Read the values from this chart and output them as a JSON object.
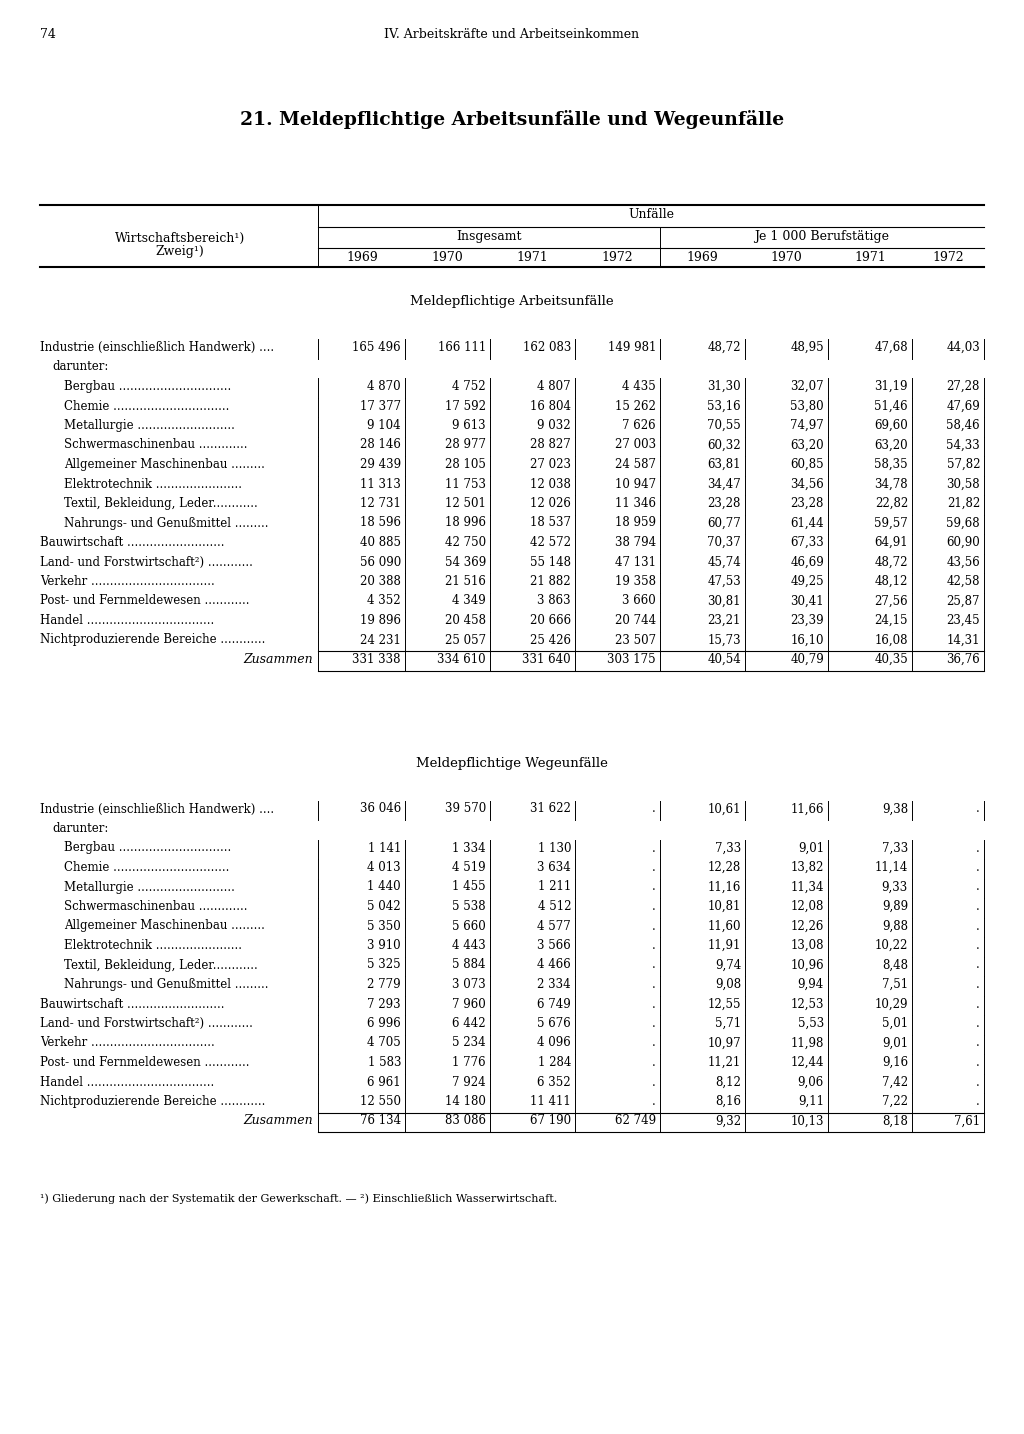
{
  "page_number": "74",
  "header": "IV. Arbeitskäfte und Arbeitseinkommen",
  "header_correct": "IV. Arbeitskräfte und Arbeitseinkommen",
  "title": "21. Meldepflichtige Arbeitsunfälle und Wegeunfälle",
  "col_header_wirtschaft1": "Wirtschaftsbereich¹)",
  "col_header_wirtschaft2": "Zweig¹)",
  "col_header_unfalle": "Unfälle",
  "col_header_insgesamt": "Insgesamt",
  "col_header_je1000": "Je 1 000 Berufstätige",
  "years": [
    "1969",
    "1970",
    "1971",
    "1972"
  ],
  "section1_title": "Meldepflichtige Arbeitsunfälle",
  "section1_rows": [
    {
      "label": "Industrie (einschließlich Handwerk) ....",
      "indent": 0,
      "bold": false,
      "zusammen": false,
      "darunt": false,
      "vals": [
        "165 496",
        "166 111",
        "162 083",
        "149 981",
        "48,72",
        "48,95",
        "47,68",
        "44,03"
      ]
    },
    {
      "label": "darunter:",
      "indent": 1,
      "bold": false,
      "zusammen": false,
      "darunt": true,
      "vals": [
        "",
        "",
        "",
        "",
        "",
        "",
        "",
        ""
      ]
    },
    {
      "label": "Bergbau ..............................",
      "indent": 2,
      "bold": false,
      "zusammen": false,
      "darunt": false,
      "vals": [
        "4 870",
        "4 752",
        "4 807",
        "4 435",
        "31,30",
        "32,07",
        "31,19",
        "27,28"
      ]
    },
    {
      "label": "Chemie ...............................",
      "indent": 2,
      "bold": false,
      "zusammen": false,
      "darunt": false,
      "vals": [
        "17 377",
        "17 592",
        "16 804",
        "15 262",
        "53,16",
        "53,80",
        "51,46",
        "47,69"
      ]
    },
    {
      "label": "Metallurgie ..........................",
      "indent": 2,
      "bold": false,
      "zusammen": false,
      "darunt": false,
      "vals": [
        "9 104",
        "9 613",
        "9 032",
        "7 626",
        "70,55",
        "74,97",
        "69,60",
        "58,46"
      ]
    },
    {
      "label": "Schwermaschinenbau .............",
      "indent": 2,
      "bold": false,
      "zusammen": false,
      "darunt": false,
      "vals": [
        "28 146",
        "28 977",
        "28 827",
        "27 003",
        "60,32",
        "63,20",
        "63,20",
        "54,33"
      ]
    },
    {
      "label": "Allgemeiner Maschinenbau .........",
      "indent": 2,
      "bold": false,
      "zusammen": false,
      "darunt": false,
      "vals": [
        "29 439",
        "28 105",
        "27 023",
        "24 587",
        "63,81",
        "60,85",
        "58,35",
        "57,82"
      ]
    },
    {
      "label": "Elektrotechnik .......................",
      "indent": 2,
      "bold": false,
      "zusammen": false,
      "darunt": false,
      "vals": [
        "11 313",
        "11 753",
        "12 038",
        "10 947",
        "34,47",
        "34,56",
        "34,78",
        "30,58"
      ]
    },
    {
      "label": "Textil, Bekleidung, Leder............",
      "indent": 2,
      "bold": false,
      "zusammen": false,
      "darunt": false,
      "vals": [
        "12 731",
        "12 501",
        "12 026",
        "11 346",
        "23,28",
        "23,28",
        "22,82",
        "21,82"
      ]
    },
    {
      "label": "Nahrungs- und Genußmittel .........",
      "indent": 2,
      "bold": false,
      "zusammen": false,
      "darunt": false,
      "vals": [
        "18 596",
        "18 996",
        "18 537",
        "18 959",
        "60,77",
        "61,44",
        "59,57",
        "59,68"
      ]
    },
    {
      "label": "Bauwirtschaft ..........................",
      "indent": 0,
      "bold": false,
      "zusammen": false,
      "darunt": false,
      "vals": [
        "40 885",
        "42 750",
        "42 572",
        "38 794",
        "70,37",
        "67,33",
        "64,91",
        "60,90"
      ]
    },
    {
      "label": "Land- und Forstwirtschaft²) ............",
      "indent": 0,
      "bold": false,
      "zusammen": false,
      "darunt": false,
      "vals": [
        "56 090",
        "54 369",
        "55 148",
        "47 131",
        "45,74",
        "46,69",
        "48,72",
        "43,56"
      ]
    },
    {
      "label": "Verkehr .................................",
      "indent": 0,
      "bold": false,
      "zusammen": false,
      "darunt": false,
      "vals": [
        "20 388",
        "21 516",
        "21 882",
        "19 358",
        "47,53",
        "49,25",
        "48,12",
        "42,58"
      ]
    },
    {
      "label": "Post- und Fernmeldewesen ............",
      "indent": 0,
      "bold": false,
      "zusammen": false,
      "darunt": false,
      "vals": [
        "4 352",
        "4 349",
        "3 863",
        "3 660",
        "30,81",
        "30,41",
        "27,56",
        "25,87"
      ]
    },
    {
      "label": "Handel ..................................",
      "indent": 0,
      "bold": false,
      "zusammen": false,
      "darunt": false,
      "vals": [
        "19 896",
        "20 458",
        "20 666",
        "20 744",
        "23,21",
        "23,39",
        "24,15",
        "23,45"
      ]
    },
    {
      "label": "Nichtproduzierende Bereiche ............",
      "indent": 0,
      "bold": false,
      "zusammen": false,
      "darunt": false,
      "vals": [
        "24 231",
        "25 057",
        "25 426",
        "23 507",
        "15,73",
        "16,10",
        "16,08",
        "14,31"
      ]
    },
    {
      "label": "Zusammen",
      "indent": 0,
      "bold": false,
      "zusammen": true,
      "darunt": false,
      "vals": [
        "331 338",
        "334 610",
        "331 640",
        "303 175",
        "40,54",
        "40,79",
        "40,35",
        "36,76"
      ]
    }
  ],
  "section2_title": "Meldepflichtige Wegeunfälle",
  "section2_rows": [
    {
      "label": "Industrie (einschließlich Handwerk) ....",
      "indent": 0,
      "bold": false,
      "zusammen": false,
      "darunt": false,
      "vals": [
        "36 046",
        "39 570",
        "31 622",
        ".",
        "10,61",
        "11,66",
        "9,38",
        "."
      ]
    },
    {
      "label": "darunter:",
      "indent": 1,
      "bold": false,
      "zusammen": false,
      "darunt": true,
      "vals": [
        "",
        "",
        "",
        "",
        "",
        "",
        "",
        ""
      ]
    },
    {
      "label": "Bergbau ..............................",
      "indent": 2,
      "bold": false,
      "zusammen": false,
      "darunt": false,
      "vals": [
        "1 141",
        "1 334",
        "1 130",
        ".",
        "7,33",
        "9,01",
        "7,33",
        "."
      ]
    },
    {
      "label": "Chemie ...............................",
      "indent": 2,
      "bold": false,
      "zusammen": false,
      "darunt": false,
      "vals": [
        "4 013",
        "4 519",
        "3 634",
        ".",
        "12,28",
        "13,82",
        "11,14",
        "."
      ]
    },
    {
      "label": "Metallurgie ..........................",
      "indent": 2,
      "bold": false,
      "zusammen": false,
      "darunt": false,
      "vals": [
        "1 440",
        "1 455",
        "1 211",
        ".",
        "11,16",
        "11,34",
        "9,33",
        "."
      ]
    },
    {
      "label": "Schwermaschinenbau .............",
      "indent": 2,
      "bold": false,
      "zusammen": false,
      "darunt": false,
      "vals": [
        "5 042",
        "5 538",
        "4 512",
        ".",
        "10,81",
        "12,08",
        "9,89",
        "."
      ]
    },
    {
      "label": "Allgemeiner Maschinenbau .........",
      "indent": 2,
      "bold": false,
      "zusammen": false,
      "darunt": false,
      "vals": [
        "5 350",
        "5 660",
        "4 577",
        ".",
        "11,60",
        "12,26",
        "9,88",
        "."
      ]
    },
    {
      "label": "Elektrotechnik .......................",
      "indent": 2,
      "bold": false,
      "zusammen": false,
      "darunt": false,
      "vals": [
        "3 910",
        "4 443",
        "3 566",
        ".",
        "11,91",
        "13,08",
        "10,22",
        "."
      ]
    },
    {
      "label": "Textil, Bekleidung, Leder............",
      "indent": 2,
      "bold": false,
      "zusammen": false,
      "darunt": false,
      "vals": [
        "5 325",
        "5 884",
        "4 466",
        ".",
        "9,74",
        "10,96",
        "8,48",
        "."
      ]
    },
    {
      "label": "Nahrungs- und Genußmittel .........",
      "indent": 2,
      "bold": false,
      "zusammen": false,
      "darunt": false,
      "vals": [
        "2 779",
        "3 073",
        "2 334",
        ".",
        "9,08",
        "9,94",
        "7,51",
        "."
      ]
    },
    {
      "label": "Bauwirtschaft ..........................",
      "indent": 0,
      "bold": false,
      "zusammen": false,
      "darunt": false,
      "vals": [
        "7 293",
        "7 960",
        "6 749",
        ".",
        "12,55",
        "12,53",
        "10,29",
        "."
      ]
    },
    {
      "label": "Land- und Forstwirtschaft²) ............",
      "indent": 0,
      "bold": false,
      "zusammen": false,
      "darunt": false,
      "vals": [
        "6 996",
        "6 442",
        "5 676",
        ".",
        "5,71",
        "5,53",
        "5,01",
        "."
      ]
    },
    {
      "label": "Verkehr .................................",
      "indent": 0,
      "bold": false,
      "zusammen": false,
      "darunt": false,
      "vals": [
        "4 705",
        "5 234",
        "4 096",
        ".",
        "10,97",
        "11,98",
        "9,01",
        "."
      ]
    },
    {
      "label": "Post- und Fernmeldewesen ............",
      "indent": 0,
      "bold": false,
      "zusammen": false,
      "darunt": false,
      "vals": [
        "1 583",
        "1 776",
        "1 284",
        ".",
        "11,21",
        "12,44",
        "9,16",
        "."
      ]
    },
    {
      "label": "Handel ..................................",
      "indent": 0,
      "bold": false,
      "zusammen": false,
      "darunt": false,
      "vals": [
        "6 961",
        "7 924",
        "6 352",
        ".",
        "8,12",
        "9,06",
        "7,42",
        "."
      ]
    },
    {
      "label": "Nichtproduzierende Bereiche ............",
      "indent": 0,
      "bold": false,
      "zusammen": false,
      "darunt": false,
      "vals": [
        "12 550",
        "14 180",
        "11 411",
        ".",
        "8,16",
        "9,11",
        "7,22",
        "."
      ]
    },
    {
      "label": "Zusammen",
      "indent": 0,
      "bold": false,
      "zusammen": true,
      "darunt": false,
      "vals": [
        "76 134",
        "83 086",
        "67 190",
        "62 749",
        "9,32",
        "10,13",
        "8,18",
        "7,61"
      ]
    }
  ],
  "footnote": "¹) Gliederung nach der Systematik der Gewerkschaft. — ²) Einschließlich Wasserwirtschaft."
}
